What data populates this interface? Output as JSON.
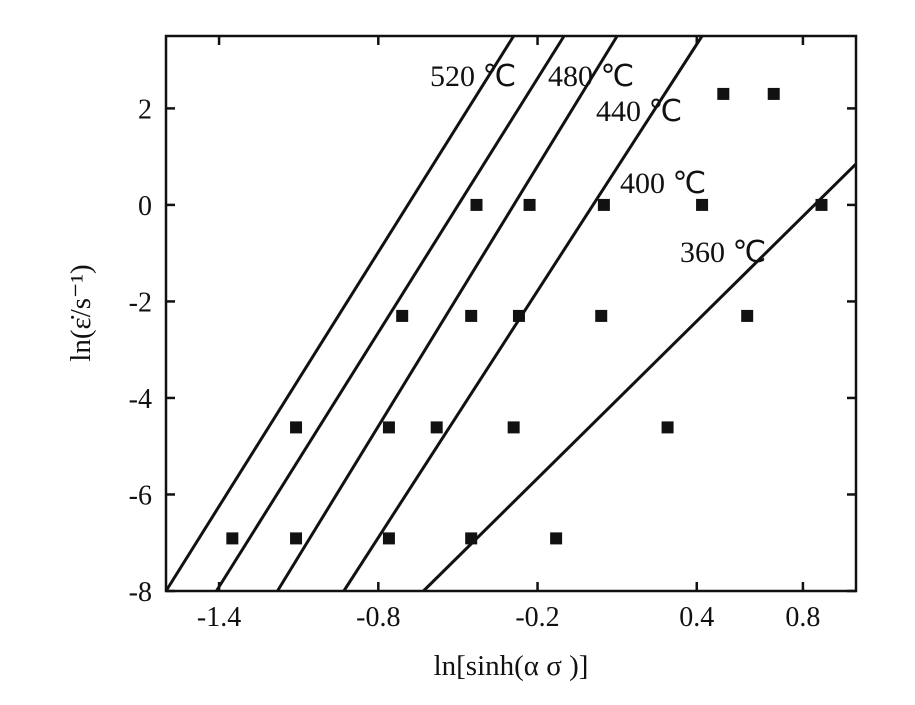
{
  "chart_data": {
    "type": "scatter",
    "title": "",
    "xlabel": "ln[sinh(α σ )]",
    "ylabel": "ln(ε̇/s⁻¹)",
    "xlim": [
      -1.6,
      1.0
    ],
    "ylim": [
      -8,
      3.5
    ],
    "xticks": [
      -1.4,
      -0.8,
      -0.2,
      0.4,
      0.8
    ],
    "xtick_labels": [
      "-1.4",
      "-0.8",
      "-0.2",
      "0.4",
      "0.8"
    ],
    "yticks": [
      -8,
      -6,
      -4,
      -2,
      0,
      2
    ],
    "ytick_labels": [
      "-8",
      "-6",
      "-4",
      "-2",
      "0",
      "2"
    ],
    "grid": false,
    "legend": "none (series labeled inline on plot)",
    "marker": "filled square",
    "color": "#111111",
    "series": [
      {
        "name": "520 ℃",
        "label": "520 ℃",
        "points": [
          [
            -1.35,
            -6.91
          ],
          [
            -1.11,
            -4.61
          ],
          [
            -0.71,
            -2.3
          ],
          [
            -0.43,
            0.0
          ]
        ],
        "fit": [
          [
            -1.6,
            -8.0
          ],
          [
            -0.29,
            3.5
          ]
        ]
      },
      {
        "name": "480 ℃",
        "label": "480 ℃",
        "points": [
          [
            -1.11,
            -6.91
          ],
          [
            -0.76,
            -4.61
          ],
          [
            -0.45,
            -2.3
          ],
          [
            -0.23,
            0.0
          ]
        ],
        "fit": [
          [
            -1.41,
            -8.0
          ],
          [
            -0.1,
            3.5
          ]
        ]
      },
      {
        "name": "440 ℃",
        "label": "440 ℃",
        "points": [
          [
            -0.76,
            -6.91
          ],
          [
            -0.58,
            -4.61
          ],
          [
            -0.27,
            -2.3
          ],
          [
            0.05,
            0.0
          ]
        ],
        "fit": [
          [
            -1.18,
            -8.0
          ],
          [
            0.1,
            3.5
          ]
        ]
      },
      {
        "name": "400 ℃",
        "label": "400 ℃",
        "points": [
          [
            -0.45,
            -6.91
          ],
          [
            -0.29,
            -4.61
          ],
          [
            0.04,
            -2.3
          ],
          [
            0.42,
            0.0
          ],
          [
            0.5,
            2.3
          ]
        ],
        "fit": [
          [
            -0.93,
            -8.0
          ],
          [
            0.42,
            3.5
          ]
        ]
      },
      {
        "name": "360 ℃",
        "label": "360 ℃",
        "points": [
          [
            -0.13,
            -6.91
          ],
          [
            0.29,
            -4.61
          ],
          [
            0.59,
            -2.3
          ],
          [
            0.87,
            0.0
          ],
          [
            0.69,
            2.3
          ]
        ],
        "fit": [
          [
            -0.63,
            -8.0
          ],
          [
            1.0,
            0.85
          ]
        ]
      }
    ]
  }
}
